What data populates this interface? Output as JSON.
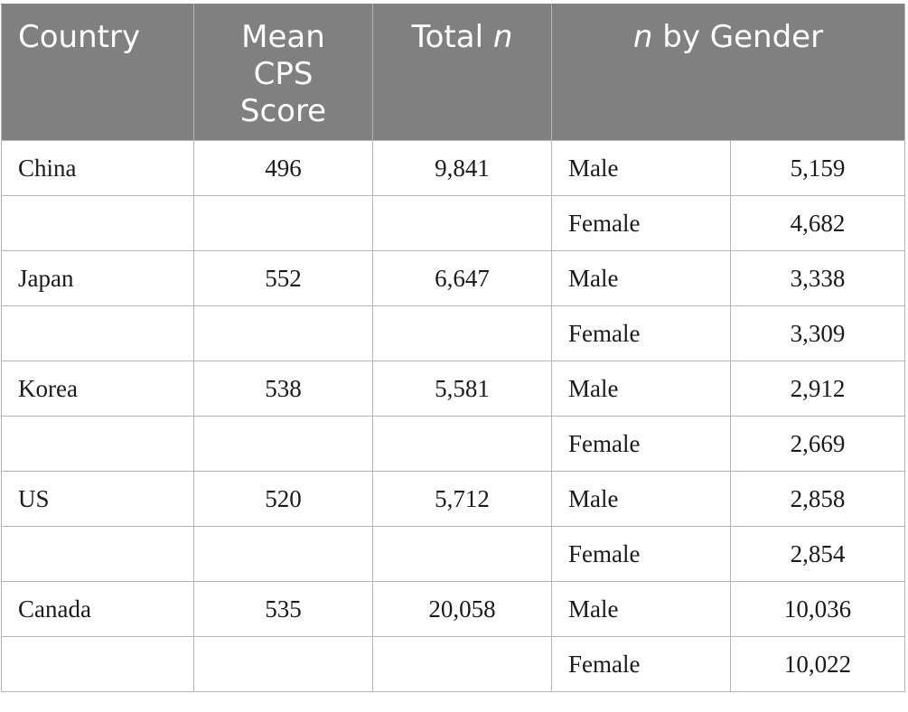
{
  "table": {
    "headers": {
      "country": "Country",
      "mean_cps": "Mean CPS Score",
      "total_prefix": "Total ",
      "total_italic": "n",
      "gender_italic": "n",
      "gender_suffix": " by Gender"
    },
    "rows": [
      {
        "country": "China",
        "mean": "496",
        "total": "9,841",
        "gender": "Male",
        "count": "5,159"
      },
      {
        "country": "",
        "mean": "",
        "total": "",
        "gender": "Female",
        "count": "4,682"
      },
      {
        "country": "Japan",
        "mean": "552",
        "total": "6,647",
        "gender": "Male",
        "count": "3,338"
      },
      {
        "country": "",
        "mean": "",
        "total": "",
        "gender": "Female",
        "count": "3,309"
      },
      {
        "country": "Korea",
        "mean": "538",
        "total": "5,581",
        "gender": "Male",
        "count": "2,912"
      },
      {
        "country": "",
        "mean": "",
        "total": "",
        "gender": "Female",
        "count": "2,669"
      },
      {
        "country": "US",
        "mean": "520",
        "total": "5,712",
        "gender": "Male",
        "count": "2,858"
      },
      {
        "country": "",
        "mean": "",
        "total": "",
        "gender": "Female",
        "count": "2,854"
      },
      {
        "country": "Canada",
        "mean": "535",
        "total": "20,058",
        "gender": "Male",
        "count": "10,036"
      },
      {
        "country": "",
        "mean": "",
        "total": "",
        "gender": "Female",
        "count": "10,022"
      }
    ]
  },
  "colors": {
    "header_background": "#808080",
    "header_text": "#ffffff",
    "grid_line": "#b5b5b5",
    "body_text": "#1a1a1a"
  }
}
